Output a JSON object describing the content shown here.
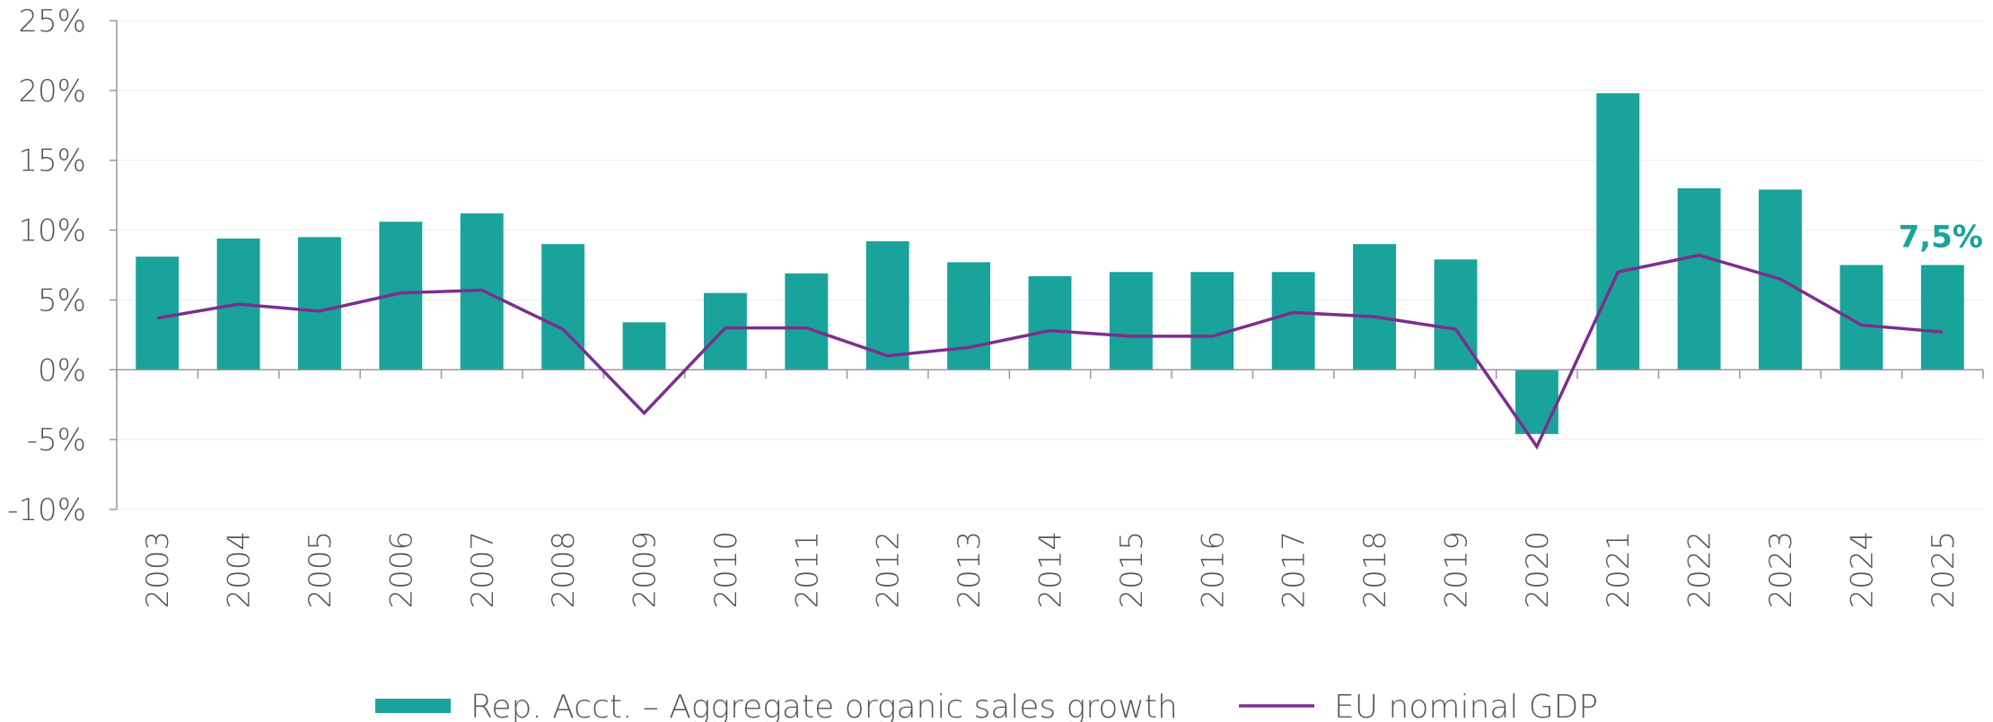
{
  "chart_data": {
    "type": "bar",
    "categories": [
      "2003",
      "2004",
      "2005",
      "2006",
      "2007",
      "2008",
      "2009",
      "2010",
      "2011",
      "2012",
      "2013",
      "2014",
      "2015",
      "2016",
      "2017",
      "2018",
      "2019",
      "2020",
      "2021",
      "2022",
      "2023",
      "2024",
      "2025"
    ],
    "series": [
      {
        "name": "Rep. Acct. – Aggregate organic sales growth",
        "type": "bar",
        "color": "#1aa39a",
        "values": [
          8.1,
          9.4,
          9.5,
          10.6,
          11.2,
          9.0,
          3.4,
          5.5,
          6.9,
          9.2,
          7.7,
          6.7,
          7.0,
          7.0,
          7.0,
          9.0,
          7.9,
          -4.6,
          19.8,
          13.0,
          12.9,
          7.5,
          7.5
        ],
        "value_labels": [
          null,
          null,
          null,
          null,
          null,
          null,
          null,
          null,
          null,
          null,
          null,
          null,
          null,
          null,
          null,
          null,
          null,
          null,
          null,
          null,
          null,
          null,
          "7,5%"
        ]
      },
      {
        "name": "EU nominal GDP",
        "type": "line",
        "color": "#7b2f8e",
        "values": [
          3.7,
          4.7,
          4.2,
          5.5,
          5.7,
          2.9,
          -3.1,
          3.0,
          3.0,
          1.0,
          1.6,
          2.8,
          2.4,
          2.4,
          4.1,
          3.8,
          2.9,
          -5.5,
          7.0,
          8.2,
          6.5,
          3.2,
          2.7
        ]
      }
    ],
    "ylim": [
      -10,
      25
    ],
    "yticks": [
      {
        "value": -10,
        "label": "-10%"
      },
      {
        "value": -5,
        "label": "-5%"
      },
      {
        "value": 0,
        "label": "0%"
      },
      {
        "value": 5,
        "label": "5%"
      },
      {
        "value": 10,
        "label": "10%"
      },
      {
        "value": 15,
        "label": "15%"
      },
      {
        "value": 20,
        "label": "20%"
      },
      {
        "value": 25,
        "label": "25%"
      }
    ],
    "grid": true,
    "legend": "bottom"
  }
}
